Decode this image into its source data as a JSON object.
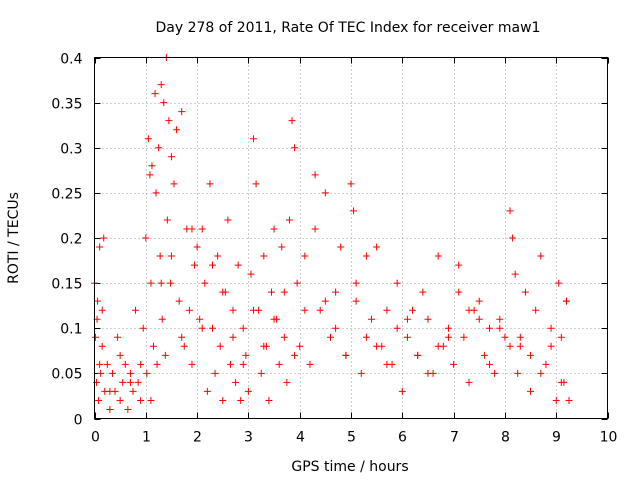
{
  "chart_data": {
    "type": "scatter",
    "title": "Day 278 of 2011, Rate Of TEC Index for receiver maw1",
    "xlabel": "GPS time / hours",
    "ylabel": "ROTI / TECUs",
    "xlim": [
      0,
      10
    ],
    "ylim": [
      0,
      0.4
    ],
    "xticks": [
      "0",
      "1",
      "2",
      "3",
      "4",
      "5",
      "6",
      "7",
      "8",
      "9",
      "10"
    ],
    "yticks": [
      "0",
      "0.05",
      "0.1",
      "0.15",
      "0.2",
      "0.25",
      "0.3",
      "0.35",
      "0.4"
    ],
    "grid": true,
    "marker": "plus",
    "color": "#ff0000",
    "series": [
      {
        "name": "ROTI",
        "x": [
          0.0,
          0.02,
          0.04,
          0.06,
          0.08,
          0.1,
          0.12,
          0.15,
          0.18,
          0.2,
          0.25,
          0.3,
          0.35,
          0.4,
          0.45,
          0.5,
          0.55,
          0.6,
          0.65,
          0.7,
          0.75,
          0.8,
          0.85,
          0.9,
          0.95,
          1.0,
          1.02,
          1.05,
          1.08,
          1.1,
          1.12,
          1.15,
          1.18,
          1.2,
          1.22,
          1.25,
          1.28,
          1.3,
          1.32,
          1.35,
          1.38,
          1.4,
          1.42,
          1.45,
          1.48,
          1.5,
          1.55,
          1.6,
          1.65,
          1.7,
          1.75,
          1.8,
          1.85,
          1.9,
          1.95,
          2.0,
          2.05,
          2.1,
          2.15,
          2.2,
          2.25,
          2.3,
          2.35,
          2.4,
          2.45,
          2.5,
          2.55,
          2.6,
          2.65,
          2.7,
          2.75,
          2.8,
          2.85,
          2.9,
          2.95,
          3.0,
          3.05,
          3.1,
          3.15,
          3.2,
          3.25,
          3.3,
          3.35,
          3.4,
          3.45,
          3.5,
          3.55,
          3.6,
          3.65,
          3.7,
          3.75,
          3.8,
          3.85,
          3.9,
          3.95,
          4.0,
          4.1,
          4.2,
          4.3,
          4.4,
          4.5,
          4.6,
          4.7,
          4.8,
          4.9,
          5.0,
          5.05,
          5.1,
          5.2,
          5.3,
          5.4,
          5.5,
          5.6,
          5.7,
          5.8,
          5.9,
          6.0,
          6.1,
          6.2,
          6.3,
          6.4,
          6.5,
          6.6,
          6.7,
          6.8,
          6.9,
          7.0,
          7.1,
          7.2,
          7.3,
          7.4,
          7.5,
          7.6,
          7.7,
          7.8,
          7.9,
          8.0,
          8.1,
          8.15,
          8.2,
          8.25,
          8.3,
          8.4,
          8.5,
          8.6,
          8.7,
          8.8,
          8.9,
          9.0,
          9.05,
          9.1,
          9.15,
          9.2,
          9.25,
          0.05,
          0.1,
          0.15,
          0.3,
          0.5,
          0.7,
          0.9,
          1.1,
          1.3,
          1.5,
          1.7,
          1.9,
          2.1,
          2.3,
          2.5,
          2.7,
          2.9,
          3.1,
          3.3,
          3.5,
          3.7,
          3.9,
          4.1,
          4.3,
          4.5,
          4.7,
          4.9,
          5.1,
          5.3,
          5.5,
          5.7,
          5.9,
          6.1,
          6.3,
          6.5,
          6.7,
          6.9,
          7.1,
          7.3,
          7.5,
          7.7,
          7.9,
          8.1,
          8.3,
          8.5,
          8.7,
          8.9,
          9.1,
          9.2
        ],
        "y": [
          0.15,
          0.09,
          0.04,
          0.13,
          0.02,
          0.19,
          0.05,
          0.08,
          0.2,
          0.03,
          0.06,
          0.01,
          0.05,
          0.03,
          0.09,
          0.02,
          0.04,
          0.06,
          0.01,
          0.05,
          0.03,
          0.12,
          0.04,
          0.02,
          0.1,
          0.2,
          0.05,
          0.31,
          0.27,
          0.15,
          0.28,
          0.08,
          0.36,
          0.25,
          0.06,
          0.3,
          0.18,
          0.37,
          0.11,
          0.35,
          0.07,
          0.4,
          0.22,
          0.33,
          0.15,
          0.29,
          0.26,
          0.32,
          0.13,
          0.34,
          0.08,
          0.21,
          0.12,
          0.06,
          0.17,
          0.19,
          0.11,
          0.21,
          0.15,
          0.03,
          0.26,
          0.1,
          0.05,
          0.18,
          0.08,
          0.02,
          0.14,
          0.22,
          0.06,
          0.12,
          0.04,
          0.17,
          0.02,
          0.1,
          0.07,
          0.03,
          0.16,
          0.31,
          0.26,
          0.12,
          0.05,
          0.18,
          0.08,
          0.02,
          0.14,
          0.21,
          0.11,
          0.06,
          0.19,
          0.09,
          0.04,
          0.22,
          0.33,
          0.3,
          0.15,
          0.08,
          0.18,
          0.06,
          0.27,
          0.12,
          0.25,
          0.09,
          0.14,
          0.19,
          0.07,
          0.26,
          0.23,
          0.13,
          0.05,
          0.18,
          0.11,
          0.19,
          0.08,
          0.12,
          0.06,
          0.15,
          0.03,
          0.09,
          0.12,
          0.07,
          0.14,
          0.11,
          0.05,
          0.18,
          0.08,
          0.1,
          0.06,
          0.17,
          0.09,
          0.04,
          0.12,
          0.13,
          0.07,
          0.1,
          0.05,
          0.11,
          0.09,
          0.23,
          0.2,
          0.16,
          0.05,
          0.08,
          0.14,
          0.03,
          0.12,
          0.18,
          0.06,
          0.1,
          0.02,
          0.15,
          0.09,
          0.04,
          0.13,
          0.02,
          0.11,
          0.06,
          0.12,
          0.03,
          0.07,
          0.04,
          0.06,
          0.02,
          0.15,
          0.18,
          0.09,
          0.21,
          0.1,
          0.17,
          0.14,
          0.09,
          0.06,
          0.12,
          0.08,
          0.11,
          0.14,
          0.07,
          0.12,
          0.21,
          0.13,
          0.1,
          0.07,
          0.15,
          0.09,
          0.08,
          0.06,
          0.1,
          0.11,
          0.07,
          0.05,
          0.08,
          0.09,
          0.14,
          0.12,
          0.11,
          0.06,
          0.1,
          0.08,
          0.09,
          0.07,
          0.05,
          0.08,
          0.04,
          0.13
        ]
      }
    ]
  }
}
